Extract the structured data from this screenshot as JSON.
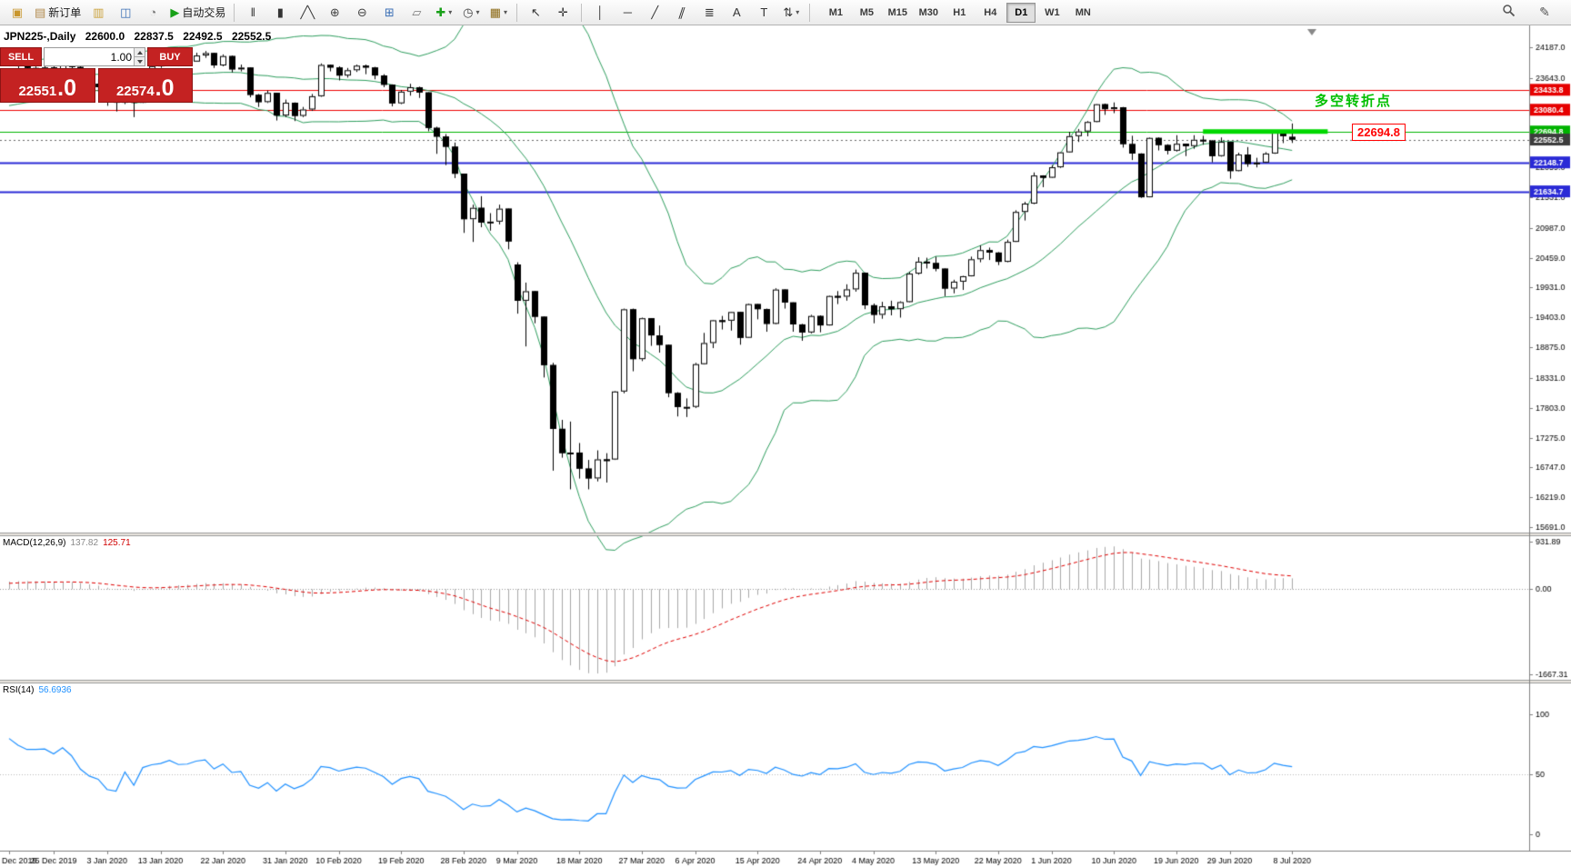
{
  "chart_header": {
    "symbol_period": "JPN225-,Daily",
    "open": "22600.0",
    "high": "22837.5",
    "low": "22492.5",
    "close": "22552.5"
  },
  "toolbar": {
    "buttons": [
      {
        "name": "new-chart-button",
        "glyph": "▣",
        "color": "#c8962d"
      },
      {
        "name": "new-order-button",
        "glyph": "▤",
        "color": "#b0884a",
        "label": "新订单"
      },
      {
        "name": "market-watch-button",
        "glyph": "▥",
        "color": "#caa23c"
      },
      {
        "name": "data-window-button",
        "glyph": "◫",
        "color": "#3b6fb5"
      },
      {
        "name": "strategy-tester-button",
        "glyph": "◔",
        "color": "#777777"
      },
      {
        "name": "autotrading-button",
        "glyph": "▶",
        "color": "#18a018",
        "label": "自动交易"
      },
      {
        "divider": true
      },
      {
        "name": "bar-chart-button",
        "glyph": "‖",
        "color": "#333333"
      },
      {
        "name": "candlestick-chart-button",
        "glyph": "▮",
        "color": "#333333"
      },
      {
        "name": "line-chart-button",
        "glyph": "╱╲",
        "color": "#333333"
      },
      {
        "name": "zoom-in-button",
        "glyph": "⊕",
        "color": "#444444"
      },
      {
        "name": "zoom-out-button",
        "glyph": "⊖",
        "color": "#444444"
      },
      {
        "name": "tile-windows-button",
        "glyph": "⊞",
        "color": "#3b6fb5"
      },
      {
        "name": "cascade-windows-button",
        "glyph": "▱",
        "color": "#777777"
      },
      {
        "name": "indicators-button",
        "glyph": "✚",
        "color": "#18a018",
        "caret": true
      },
      {
        "name": "periods-button",
        "glyph": "◷",
        "color": "#444444",
        "caret": true
      },
      {
        "name": "templates-button",
        "glyph": "▦",
        "color": "#8b6914",
        "caret": true
      },
      {
        "divider": true
      },
      {
        "name": "cursor-button",
        "glyph": "↖",
        "color": "#333333"
      },
      {
        "name": "crosshair-button",
        "glyph": "✛",
        "color": "#333333"
      },
      {
        "divider": true
      },
      {
        "name": "vertical-line-button",
        "glyph": "│",
        "color": "#333333"
      },
      {
        "name": "horizontal-line-button",
        "glyph": "─",
        "color": "#333333"
      },
      {
        "name": "trendline-button",
        "glyph": "╱",
        "color": "#333333"
      },
      {
        "name": "channel-button",
        "glyph": "∥",
        "color": "#333333",
        "slant": true
      },
      {
        "name": "fibonacci-button",
        "glyph": "≣",
        "color": "#333333"
      },
      {
        "name": "text-button",
        "glyph": "A",
        "color": "#333333"
      },
      {
        "name": "label-button",
        "glyph": "T",
        "color": "#333333"
      },
      {
        "name": "arrows-button",
        "glyph": "⇅",
        "color": "#333333",
        "caret": true
      },
      {
        "divider": true
      }
    ],
    "timeframes": [
      "M1",
      "M5",
      "M15",
      "M30",
      "H1",
      "H4",
      "D1",
      "W1",
      "MN"
    ],
    "active_timeframe": "D1",
    "edit_glyph": "✎"
  },
  "trade_panel": {
    "sell_label": "SELL",
    "buy_label": "BUY",
    "lot": "1.00",
    "sell": {
      "head": "22551",
      "tail": ".0"
    },
    "buy": {
      "head": "22574",
      "tail": ".0"
    }
  },
  "annotations": {
    "turning_point": "多空转折点",
    "price_flag": "22694.8"
  },
  "indicator_labels": {
    "macd_name": "MACD(12,26,9)",
    "macd_value": "137.82",
    "macd_signal": "125.71",
    "rsi_name": "RSI(14)",
    "rsi_value": "56.6936"
  },
  "axis": {
    "price_ticks": [
      24187.0,
      23643.0,
      22059.0,
      21531.0,
      20987.0,
      20459.0,
      19931.0,
      19403.0,
      18875.0,
      18331.0,
      17803.0,
      17275.0,
      16747.0,
      16219.0,
      15691.0
    ],
    "badges": [
      {
        "value": "23433.8",
        "price": 23433.8,
        "color": "#e60000"
      },
      {
        "value": "23080.4",
        "price": 23080.4,
        "color": "#e60000"
      },
      {
        "value": "22694.8",
        "price": 22694.8,
        "color": "#00b300"
      },
      {
        "value": "22552.5",
        "price": 22552.5,
        "color": "#3c3c3c"
      },
      {
        "value": "22148.7",
        "price": 22148.7,
        "color": "#2a2ad6"
      },
      {
        "value": "21634.7",
        "price": 21634.7,
        "color": "#2a2ad6"
      }
    ],
    "macd_ticks": [
      931.89,
      0,
      -1667.31
    ],
    "rsi_ticks": [
      100,
      50,
      0
    ]
  },
  "chart_data": {
    "type": "candlestick",
    "symbol": "JPN225",
    "period": "Daily",
    "ohlc_current": {
      "open": 22600.0,
      "high": 22837.5,
      "low": 22492.5,
      "close": 22552.5
    },
    "hlines": [
      {
        "price": 23433.8,
        "color": "#ee0000",
        "width": 1
      },
      {
        "price": 23080.4,
        "color": "#ee0000",
        "width": 1
      },
      {
        "price": 22694.8,
        "color": "#00b300",
        "width": 1
      },
      {
        "price": 22148.7,
        "color": "#2a2ad6",
        "width": 2
      },
      {
        "price": 21634.7,
        "color": "#2a2ad6",
        "width": 2
      }
    ],
    "highlight_segment": {
      "price": 22694.8,
      "from_index": 134,
      "to_index": 148,
      "color": "#00d800"
    },
    "bollinger": {
      "period": 20,
      "deviation": 2,
      "color": "#2e9e5e"
    },
    "macd": {
      "fast": 12,
      "slow": 26,
      "signal": 9,
      "value": 137.82,
      "signal_value": 125.71,
      "histogram_color": "#a8a8a8",
      "signal_color": "#e00000"
    },
    "rsi": {
      "period": 14,
      "value": 56.6936,
      "color": "#1e90ff"
    },
    "seed_closes": [
      23150,
      23220,
      23300,
      23380,
      23300,
      23350,
      23420,
      23480,
      23420,
      23380,
      23450,
      23520,
      23580,
      23650,
      23600,
      23520,
      23560,
      23650,
      23740,
      23850
    ],
    "candles": [
      [
        23920,
        23980,
        23860,
        23934
      ],
      [
        23934,
        23950,
        23800,
        23864
      ],
      [
        23864,
        23885,
        23770,
        23817
      ],
      [
        23817,
        23850,
        23780,
        23821
      ],
      [
        23821,
        23860,
        23790,
        23830
      ],
      [
        23830,
        23850,
        23750,
        23782
      ],
      [
        23782,
        23940,
        23770,
        23924
      ],
      [
        23924,
        23950,
        23800,
        23838
      ],
      [
        23838,
        23860,
        23600,
        23657
      ],
      [
        23657,
        23700,
        23480,
        23540
      ],
      [
        23540,
        23620,
        23400,
        23480
      ],
      [
        23480,
        23520,
        23150,
        23250
      ],
      [
        23250,
        23300,
        23050,
        23205
      ],
      [
        23205,
        23600,
        23180,
        23575
      ],
      [
        23575,
        23620,
        22950,
        23204
      ],
      [
        23204,
        23770,
        23200,
        23739
      ],
      [
        23739,
        23900,
        23720,
        23851
      ],
      [
        23851,
        23950,
        23820,
        23900
      ],
      [
        23900,
        24060,
        23880,
        24025
      ],
      [
        24025,
        24040,
        23860,
        23917
      ],
      [
        23917,
        23960,
        23870,
        23933
      ],
      [
        23933,
        24090,
        23930,
        24041
      ],
      [
        24041,
        24120,
        24000,
        24084
      ],
      [
        24084,
        24090,
        23820,
        23865
      ],
      [
        23865,
        24060,
        23850,
        24031
      ],
      [
        24031,
        24040,
        23740,
        23795
      ],
      [
        23795,
        23880,
        23760,
        23827
      ],
      [
        23827,
        23830,
        23300,
        23344
      ],
      [
        23344,
        23360,
        23130,
        23216
      ],
      [
        23216,
        23420,
        23200,
        23379
      ],
      [
        23379,
        23380,
        22890,
        22978
      ],
      [
        22978,
        23260,
        22950,
        23205
      ],
      [
        23205,
        23210,
        22880,
        22972
      ],
      [
        22972,
        23130,
        22950,
        23085
      ],
      [
        23085,
        23360,
        23060,
        23320
      ],
      [
        23320,
        23900,
        23310,
        23874
      ],
      [
        23874,
        23880,
        23760,
        23828
      ],
      [
        23828,
        23850,
        23600,
        23686
      ],
      [
        23686,
        23820,
        23650,
        23780
      ],
      [
        23780,
        23880,
        23750,
        23861
      ],
      [
        23861,
        23880,
        23710,
        23828
      ],
      [
        23828,
        23840,
        23620,
        23687
      ],
      [
        23687,
        23710,
        23480,
        23523
      ],
      [
        23523,
        23530,
        23140,
        23194
      ],
      [
        23194,
        23430,
        23180,
        23401
      ],
      [
        23401,
        23540,
        23330,
        23479
      ],
      [
        23479,
        23490,
        23290,
        23387
      ],
      [
        23387,
        23390,
        22700,
        22760
      ],
      [
        22760,
        22780,
        22300,
        22605
      ],
      [
        22605,
        22650,
        22100,
        22426
      ],
      [
        22426,
        22500,
        21870,
        21948
      ],
      [
        21948,
        21950,
        20900,
        21143
      ],
      [
        21143,
        21400,
        20740,
        21344
      ],
      [
        21344,
        21550,
        21000,
        21083
      ],
      [
        21083,
        21250,
        20940,
        21100
      ],
      [
        21100,
        21400,
        21050,
        21329
      ],
      [
        21329,
        21330,
        20610,
        20750
      ],
      [
        20340,
        20380,
        19470,
        19699
      ],
      [
        19699,
        20020,
        18890,
        19867
      ],
      [
        19867,
        19870,
        19300,
        19416
      ],
      [
        19416,
        19420,
        18340,
        18560
      ],
      [
        18560,
        18600,
        16690,
        17431
      ],
      [
        17431,
        17590,
        16920,
        17002
      ],
      [
        17002,
        17560,
        16360,
        17011
      ],
      [
        17011,
        17180,
        16550,
        16727
      ],
      [
        16727,
        16880,
        16360,
        16553
      ],
      [
        16553,
        17050,
        16500,
        16890
      ],
      [
        16890,
        17000,
        16480,
        16888
      ],
      [
        16888,
        18100,
        16880,
        18092
      ],
      [
        18092,
        19560,
        18060,
        19547
      ],
      [
        19547,
        19560,
        18450,
        18665
      ],
      [
        18665,
        19400,
        18630,
        19389
      ],
      [
        19389,
        19390,
        18900,
        19085
      ],
      [
        19085,
        19260,
        18780,
        18917
      ],
      [
        18917,
        18920,
        17990,
        18065
      ],
      [
        18065,
        18080,
        17650,
        17818
      ],
      [
        17818,
        17970,
        17640,
        17820
      ],
      [
        17820,
        18600,
        17800,
        18576
      ],
      [
        18576,
        19130,
        18570,
        18950
      ],
      [
        18950,
        19360,
        18860,
        19353
      ],
      [
        19353,
        19430,
        19190,
        19346
      ],
      [
        19346,
        19500,
        19170,
        19499
      ],
      [
        19499,
        19500,
        18920,
        19043
      ],
      [
        19043,
        19650,
        19040,
        19639
      ],
      [
        19639,
        19640,
        19370,
        19550
      ],
      [
        19550,
        19560,
        19150,
        19290
      ],
      [
        19290,
        19920,
        19280,
        19897
      ],
      [
        19897,
        19900,
        19560,
        19669
      ],
      [
        19669,
        19670,
        19150,
        19280
      ],
      [
        19280,
        19290,
        18990,
        19138
      ],
      [
        19138,
        19450,
        19120,
        19429
      ],
      [
        19429,
        19440,
        19140,
        19262
      ],
      [
        19262,
        19790,
        19260,
        19783
      ],
      [
        19783,
        19870,
        19640,
        19771
      ],
      [
        19771,
        19990,
        19700,
        19900
      ],
      [
        19900,
        20250,
        19860,
        20194
      ],
      [
        20194,
        20200,
        19550,
        19619
      ],
      [
        19619,
        19650,
        19300,
        19450
      ],
      [
        19450,
        19680,
        19380,
        19600
      ],
      [
        19600,
        19700,
        19440,
        19550
      ],
      [
        19550,
        19690,
        19400,
        19675
      ],
      [
        19675,
        20210,
        19670,
        20179
      ],
      [
        20179,
        20470,
        20160,
        20391
      ],
      [
        20391,
        20460,
        20270,
        20366
      ],
      [
        20366,
        20480,
        20220,
        20267
      ],
      [
        20267,
        20270,
        19780,
        19915
      ],
      [
        19915,
        20070,
        19830,
        20037
      ],
      [
        20037,
        20140,
        19890,
        20133
      ],
      [
        20133,
        20480,
        20130,
        20433
      ],
      [
        20433,
        20680,
        20380,
        20595
      ],
      [
        20595,
        20640,
        20420,
        20552
      ],
      [
        20552,
        20560,
        20330,
        20388
      ],
      [
        20388,
        20780,
        20380,
        20741
      ],
      [
        20741,
        21300,
        20740,
        21271
      ],
      [
        21271,
        21450,
        21120,
        21419
      ],
      [
        21419,
        21970,
        21410,
        21916
      ],
      [
        21916,
        21920,
        21710,
        21877
      ],
      [
        21877,
        22100,
        21870,
        22062
      ],
      [
        22062,
        22330,
        22050,
        22326
      ],
      [
        22326,
        22690,
        22320,
        22613
      ],
      [
        22613,
        22740,
        22510,
        22696
      ],
      [
        22696,
        22880,
        22610,
        22864
      ],
      [
        22864,
        23180,
        22860,
        23178
      ],
      [
        23178,
        23190,
        22990,
        23091
      ],
      [
        23091,
        23210,
        23020,
        23125
      ],
      [
        23125,
        23130,
        22410,
        22473
      ],
      [
        22473,
        22620,
        22190,
        22305
      ],
      [
        22305,
        22310,
        21520,
        21531
      ],
      [
        21531,
        22590,
        21530,
        22582
      ],
      [
        22582,
        22590,
        22360,
        22456
      ],
      [
        22456,
        22470,
        22290,
        22355
      ],
      [
        22355,
        22630,
        22340,
        22478
      ],
      [
        22478,
        22480,
        22260,
        22437
      ],
      [
        22437,
        22630,
        22390,
        22549
      ],
      [
        22549,
        22620,
        22460,
        22534
      ],
      [
        22534,
        22540,
        22150,
        22260
      ],
      [
        22260,
        22590,
        22250,
        22512
      ],
      [
        22512,
        22515,
        21860,
        21995
      ],
      [
        21995,
        22320,
        21990,
        22288
      ],
      [
        22288,
        22420,
        22070,
        22122
      ],
      [
        22122,
        22230,
        22060,
        22146
      ],
      [
        22146,
        22330,
        22140,
        22306
      ],
      [
        22306,
        22720,
        22300,
        22714
      ],
      [
        22714,
        22720,
        22490,
        22615
      ],
      [
        22600,
        22837.5,
        22492.5,
        22552.5
      ]
    ],
    "date_labels": [
      {
        "i": 0,
        "label": "Dec 2019"
      },
      {
        "i": 5,
        "label": "25 Dec 2019"
      },
      {
        "i": 11,
        "label": "3 Jan 2020"
      },
      {
        "i": 17,
        "label": "13 Jan 2020"
      },
      {
        "i": 24,
        "label": "22 Jan 2020"
      },
      {
        "i": 31,
        "label": "31 Jan 2020"
      },
      {
        "i": 37,
        "label": "10 Feb 2020"
      },
      {
        "i": 44,
        "label": "19 Feb 2020"
      },
      {
        "i": 51,
        "label": "28 Feb 2020"
      },
      {
        "i": 57,
        "label": "9 Mar 2020"
      },
      {
        "i": 64,
        "label": "18 Mar 2020"
      },
      {
        "i": 71,
        "label": "27 Mar 2020"
      },
      {
        "i": 77,
        "label": "6 Apr 2020"
      },
      {
        "i": 84,
        "label": "15 Apr 2020"
      },
      {
        "i": 91,
        "label": "24 Apr 2020"
      },
      {
        "i": 97,
        "label": "4 May 2020"
      },
      {
        "i": 104,
        "label": "13 May 2020"
      },
      {
        "i": 111,
        "label": "22 May 2020"
      },
      {
        "i": 117,
        "label": "1 Jun 2020"
      },
      {
        "i": 124,
        "label": "10 Jun 2020"
      },
      {
        "i": 131,
        "label": "19 Jun 2020"
      },
      {
        "i": 137,
        "label": "29 Jun 2020"
      },
      {
        "i": 144,
        "label": "8 Jul 2020"
      }
    ]
  }
}
